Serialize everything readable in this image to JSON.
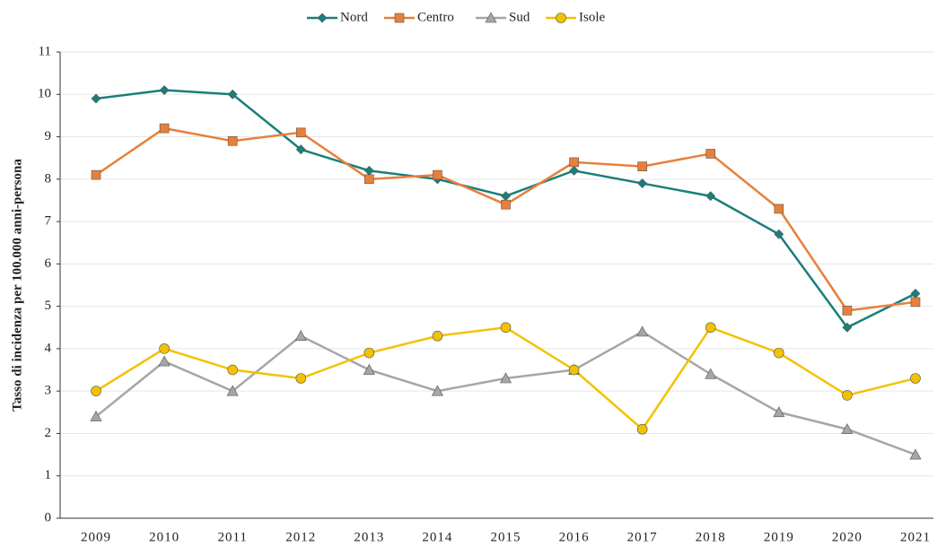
{
  "chart_data": {
    "type": "line",
    "y_label": "Tasso di incidenza per 100.000 anni-persona",
    "categories": [
      "2009",
      "2010",
      "2011",
      "2012",
      "2013",
      "2014",
      "2015",
      "2016",
      "2017",
      "2018",
      "2019",
      "2020",
      "2021"
    ],
    "series": [
      {
        "name": "Nord",
        "color": "#1a7f7a",
        "marker": "diamond",
        "values": [
          9.9,
          10.1,
          10.0,
          8.7,
          8.2,
          8.0,
          7.6,
          8.2,
          7.9,
          7.6,
          6.7,
          4.5,
          5.3
        ]
      },
      {
        "name": "Centro",
        "color": "#e8803a",
        "marker": "square",
        "values": [
          8.1,
          9.2,
          8.9,
          9.1,
          8.0,
          8.1,
          7.4,
          8.4,
          8.3,
          8.6,
          7.3,
          4.9,
          5.1
        ]
      },
      {
        "name": "Sud",
        "color": "#a6a6a6",
        "marker": "triangle",
        "values": [
          2.4,
          3.7,
          3.0,
          4.3,
          3.5,
          3.0,
          3.3,
          3.5,
          4.4,
          3.4,
          2.5,
          2.1,
          1.5
        ]
      },
      {
        "name": "Isole",
        "color": "#f2c200",
        "marker": "circle",
        "values": [
          3.0,
          4.0,
          3.5,
          3.3,
          3.9,
          4.3,
          4.5,
          3.5,
          2.1,
          4.5,
          3.9,
          2.9,
          3.3
        ]
      }
    ],
    "ylim": [
      0,
      11
    ],
    "yticks": [
      0,
      1,
      2,
      3,
      4,
      5,
      6,
      7,
      8,
      9,
      10,
      11
    ],
    "grid": true,
    "legend": "top"
  }
}
